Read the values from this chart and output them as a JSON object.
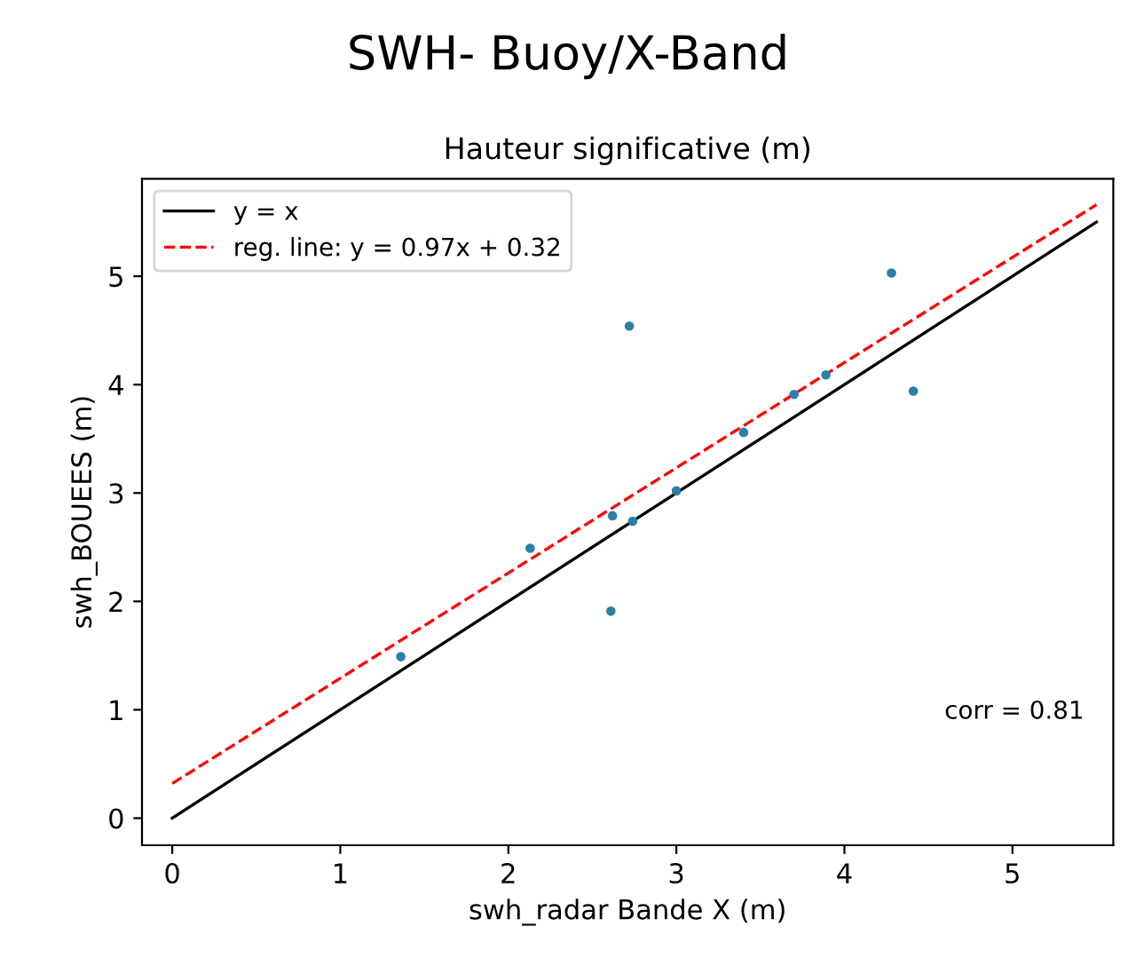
{
  "chart_data": {
    "type": "scatter",
    "title": "SWH- Buoy/X-Band",
    "subtitle": "Hauteur significative (m)",
    "xlabel": "swh_radar Bande X (m)",
    "ylabel": "swh_BOUEES (m)",
    "series": [
      {
        "color": "#2b7fa8",
        "x": [
          1.36,
          2.13,
          2.61,
          2.62,
          2.74,
          3.0,
          3.4,
          3.7,
          3.89,
          2.72,
          4.28,
          4.41
        ],
        "values": [
          1.49,
          2.49,
          1.91,
          2.79,
          2.74,
          3.02,
          3.56,
          3.91,
          4.09,
          4.54,
          5.03,
          3.94
        ]
      },
      {
        "type": "line",
        "name": "y = x",
        "color": "#000000",
        "line_style": "solid",
        "x": [
          0,
          5.5
        ],
        "values": [
          0,
          5.5
        ]
      },
      {
        "type": "line",
        "name": "reg. line: y = 0.97x + 0.32",
        "color": "#ff0000",
        "line_style": "dashed",
        "x": [
          0,
          5.5
        ],
        "values": [
          0.32,
          5.66
        ]
      }
    ],
    "xlim": [
      -0.18,
      5.6
    ],
    "ylim": [
      -0.25,
      5.9
    ],
    "xticks": [
      0,
      1,
      2,
      3,
      4,
      5
    ],
    "yticks": [
      0,
      1,
      2,
      3,
      4,
      5
    ],
    "grid": false,
    "legend": "top left",
    "annotations": [
      {
        "text": "corr = 0.81"
      }
    ]
  }
}
